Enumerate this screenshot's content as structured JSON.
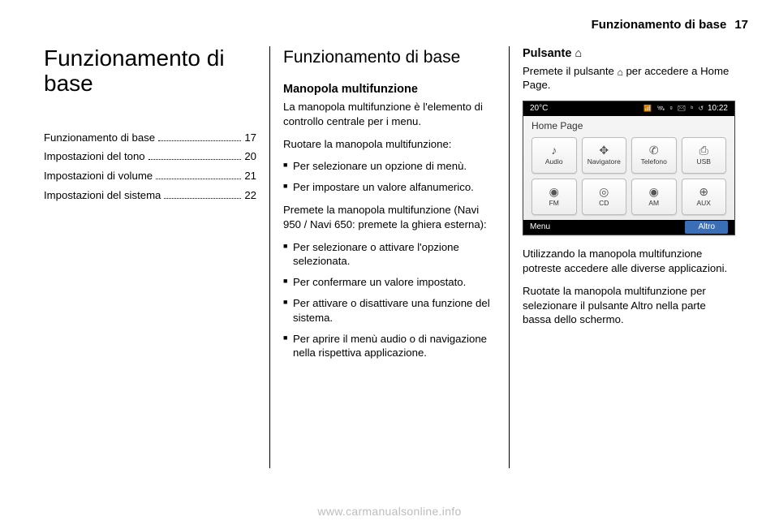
{
  "header": {
    "title": "Funzionamento di base",
    "page": "17"
  },
  "col1": {
    "title": "Funzionamento di base",
    "toc": [
      {
        "label": "Funzionamento di base",
        "page": "17"
      },
      {
        "label": "Impostazioni del tono",
        "page": "20"
      },
      {
        "label": "Impostazioni di volume",
        "page": "21"
      },
      {
        "label": "Impostazioni del sistema",
        "page": "22"
      }
    ]
  },
  "col2": {
    "title": "Funzionamento di base",
    "sub1": "Manopola multifunzione",
    "p1": "La manopola multifunzione è l'ele­mento di controllo centrale per i menu.",
    "p2": "Ruotare la manopola multifunzione:",
    "list1": [
      "Per selezionare un opzione di menù.",
      "Per impostare un valore alfanume­rico."
    ],
    "p3": "Premete la manopola multifunzione (Navi 950 / Navi 650: premete la ghiera esterna):",
    "list2": [
      "Per selezionare o attivare l'opzione selezionata.",
      "Per confermare un valore impo­stato.",
      "Per attivare o disattivare una fun­zione del sistema.",
      "Per aprire il menù audio o di navi­gazione nella rispettiva applica­zione."
    ]
  },
  "col3": {
    "sub": "Pulsante ⌂",
    "p1a": "Premete il pulsante ",
    "p1b": " per accedere a Home Page.",
    "p2": "Utilizzando la manopola multifun­zione potreste accedere alle diverse applicazioni.",
    "p3": "Ruotate la manopola multifunzione per selezionare il pulsante Altro nella parte bassa dello schermo."
  },
  "screenshot": {
    "temp": "20°C",
    "time": "10:22",
    "title": "Home Page",
    "apps": [
      {
        "icon": "♪",
        "label": "Audio"
      },
      {
        "icon": "✥",
        "label": "Navigatore"
      },
      {
        "icon": "✆",
        "label": "Telefono"
      },
      {
        "icon": "⎙",
        "label": "USB"
      },
      {
        "icon": "◉",
        "label": "FM"
      },
      {
        "icon": "◎",
        "label": "CD"
      },
      {
        "icon": "◉",
        "label": "AM"
      },
      {
        "icon": "⊕",
        "label": "AUX"
      }
    ],
    "menu": "Menu",
    "altro": "Altro"
  },
  "watermark": "www.carmanualsonline.info"
}
